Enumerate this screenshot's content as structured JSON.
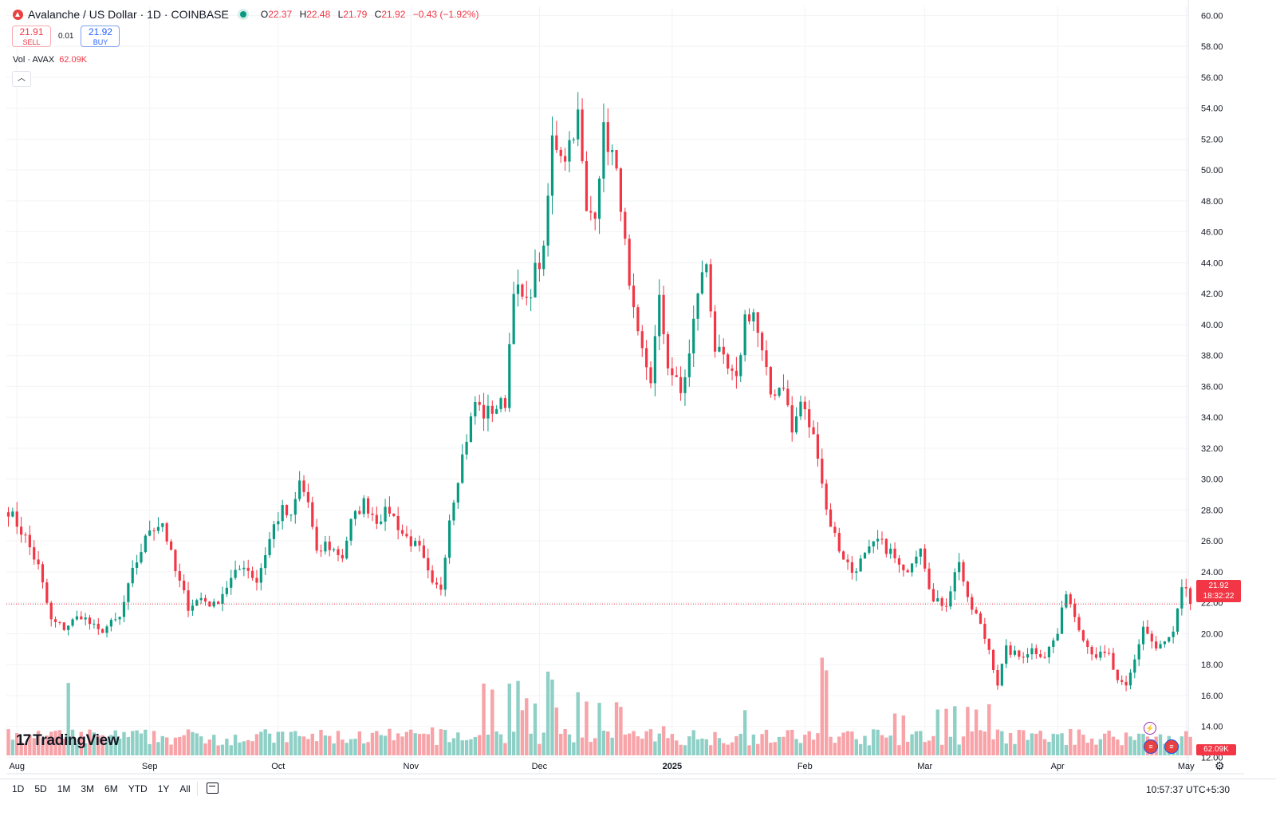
{
  "header": {
    "title": "Avalanche / US Dollar · 1D · COINBASE",
    "o_label": "O",
    "o": "22.37",
    "h_label": "H",
    "h": "22.48",
    "l_label": "L",
    "l": "21.79",
    "c_label": "C",
    "c": "21.92",
    "change": "−0.43 (−1.92%)"
  },
  "trade": {
    "sell_price": "21.91",
    "sell_label": "SELL",
    "spread": "0.01",
    "buy_price": "21.92",
    "buy_label": "BUY"
  },
  "volume_legend": {
    "label": "Vol · AVAX",
    "value": "62.09K"
  },
  "collapse_icon": "chevron-up-icon",
  "watermark": {
    "mark": "17",
    "name": "TradingView"
  },
  "price_tag": {
    "price": "21.92",
    "countdown": "18:32:22"
  },
  "volume_tag": "62.09K",
  "event_icons": [
    "flash-icon",
    "us-flag-icon",
    "us-flag-icon"
  ],
  "settings_icon": "gear-icon",
  "range_buttons": [
    "1D",
    "5D",
    "1M",
    "3M",
    "6M",
    "YTD",
    "1Y",
    "All"
  ],
  "calendar_icon": "calendar-icon",
  "clock": "10:57:37 UTC+5:30",
  "colors": {
    "up": "#089981",
    "down": "#f23645",
    "up_vol": "#8fd0c6",
    "down_vol": "#f7a3a8"
  },
  "chart_data": {
    "type": "candlestick",
    "title": "Avalanche / US Dollar · 1D · COINBASE",
    "ylim": [
      10.94,
      61.0
    ],
    "y_ticks": [
      "12.00",
      "14.00",
      "16.00",
      "18.00",
      "20.00",
      "22.00",
      "24.00",
      "26.00",
      "28.00",
      "30.00",
      "32.00",
      "34.00",
      "36.00",
      "38.00",
      "40.00",
      "42.00",
      "44.00",
      "46.00",
      "48.00",
      "50.00",
      "52.00",
      "54.00",
      "56.00",
      "58.00",
      "60.00"
    ],
    "x_labels": [
      "Aug",
      "Sep",
      "Oct",
      "Nov",
      "Dec",
      "2025",
      "Feb",
      "Mar",
      "Apr",
      "May"
    ],
    "x_label_days": [
      2,
      33,
      63,
      94,
      124,
      155,
      186,
      214,
      245,
      275
    ],
    "last_price": 21.92,
    "close_anchors": [
      [
        0,
        28.0
      ],
      [
        4,
        26.2
      ],
      [
        7,
        24.3
      ],
      [
        10,
        20.8
      ],
      [
        13,
        20.4
      ],
      [
        17,
        21.2
      ],
      [
        21,
        20.1
      ],
      [
        26,
        21.0
      ],
      [
        29,
        24.0
      ],
      [
        33,
        26.8
      ],
      [
        36,
        27.2
      ],
      [
        39,
        24.0
      ],
      [
        42,
        21.8
      ],
      [
        45,
        22.3
      ],
      [
        48,
        21.8
      ],
      [
        52,
        23.5
      ],
      [
        55,
        24.5
      ],
      [
        58,
        23.4
      ],
      [
        62,
        27.0
      ],
      [
        64,
        28.0
      ],
      [
        66,
        27.4
      ],
      [
        68,
        29.8
      ],
      [
        70,
        28.5
      ],
      [
        72,
        25.0
      ],
      [
        74,
        25.8
      ],
      [
        78,
        25.0
      ],
      [
        80,
        27.2
      ],
      [
        83,
        28.5
      ],
      [
        86,
        27.4
      ],
      [
        89,
        28.0
      ],
      [
        92,
        26.5
      ],
      [
        96,
        25.4
      ],
      [
        99,
        23.0
      ],
      [
        101,
        23.0
      ],
      [
        103,
        27.5
      ],
      [
        106,
        31.5
      ],
      [
        109,
        35.0
      ],
      [
        111,
        34.2
      ],
      [
        113,
        34.5
      ],
      [
        116,
        35.0
      ],
      [
        118,
        42.5
      ],
      [
        121,
        41.2
      ],
      [
        123,
        43.5
      ],
      [
        125,
        44.5
      ],
      [
        127,
        52.0
      ],
      [
        130,
        51.0
      ],
      [
        133,
        53.5
      ],
      [
        135,
        47.0
      ],
      [
        137,
        47.5
      ],
      [
        139,
        52.5
      ],
      [
        141,
        51.0
      ],
      [
        143,
        48.0
      ],
      [
        145,
        42.0
      ],
      [
        147,
        39.0
      ],
      [
        150,
        36.5
      ],
      [
        152,
        41.5
      ],
      [
        154,
        37.5
      ],
      [
        157,
        35.5
      ],
      [
        159,
        38.0
      ],
      [
        161,
        42.2
      ],
      [
        163,
        44.0
      ],
      [
        165,
        38.5
      ],
      [
        168,
        37.0
      ],
      [
        170,
        36.2
      ],
      [
        172,
        40.5
      ],
      [
        174,
        40.8
      ],
      [
        176,
        38.0
      ],
      [
        178,
        35.5
      ],
      [
        181,
        36.2
      ],
      [
        183,
        33.0
      ],
      [
        185,
        35.0
      ],
      [
        187,
        33.5
      ],
      [
        189,
        31.8
      ],
      [
        191,
        28.0
      ],
      [
        194,
        25.5
      ],
      [
        197,
        24.0
      ],
      [
        200,
        25.0
      ],
      [
        203,
        26.0
      ],
      [
        206,
        25.3
      ],
      [
        209,
        23.8
      ],
      [
        211,
        24.8
      ],
      [
        213,
        25.8
      ],
      [
        216,
        22.0
      ],
      [
        219,
        22.0
      ],
      [
        222,
        24.8
      ],
      [
        224,
        22.0
      ],
      [
        226,
        21.2
      ],
      [
        229,
        19.0
      ],
      [
        231,
        16.8
      ],
      [
        233,
        19.0
      ],
      [
        236,
        18.5
      ],
      [
        239,
        19.0
      ],
      [
        242,
        18.6
      ],
      [
        245,
        20.0
      ],
      [
        247,
        22.8
      ],
      [
        249,
        21.2
      ],
      [
        252,
        19.2
      ],
      [
        254,
        18.6
      ],
      [
        257,
        18.6
      ],
      [
        259,
        16.8
      ],
      [
        261,
        16.5
      ],
      [
        263,
        18.3
      ],
      [
        265,
        20.5
      ],
      [
        268,
        19.0
      ],
      [
        270,
        19.4
      ],
      [
        272,
        20.0
      ],
      [
        274,
        22.8
      ],
      [
        276,
        22.4
      ]
    ],
    "volume_spikes": [
      [
        14,
        10.9
      ],
      [
        99,
        4.2
      ],
      [
        111,
        10.8
      ],
      [
        113,
        9.9
      ],
      [
        117,
        10.8
      ],
      [
        119,
        11.2
      ],
      [
        120,
        6.8
      ],
      [
        121,
        8.6
      ],
      [
        123,
        7.8
      ],
      [
        126,
        12.6
      ],
      [
        127,
        11.4
      ],
      [
        128,
        7.2
      ],
      [
        133,
        9.5
      ],
      [
        135,
        8.1
      ],
      [
        138,
        7.9
      ],
      [
        142,
        8.0
      ],
      [
        143,
        7.3
      ],
      [
        153,
        4.4
      ],
      [
        172,
        6.8
      ],
      [
        190,
        14.7
      ],
      [
        191,
        12.8
      ],
      [
        207,
        6.3
      ],
      [
        209,
        6.0
      ],
      [
        217,
        6.9
      ],
      [
        219,
        7.0
      ],
      [
        221,
        7.4
      ],
      [
        224,
        7.3
      ],
      [
        226,
        6.9
      ],
      [
        229,
        7.7
      ]
    ],
    "volume_ylim": [
      0,
      30
    ]
  }
}
